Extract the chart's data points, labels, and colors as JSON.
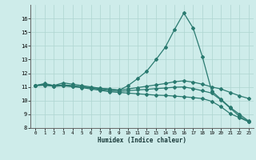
{
  "xlabel": "Humidex (Indice chaleur)",
  "ylabel": "",
  "background_color": "#ceecea",
  "grid_color": "#aed4d0",
  "line_color": "#2a7a70",
  "xlim": [
    -0.5,
    23.5
  ],
  "ylim": [
    8,
    17
  ],
  "xticks": [
    0,
    1,
    2,
    3,
    4,
    5,
    6,
    7,
    8,
    9,
    10,
    11,
    12,
    13,
    14,
    15,
    16,
    17,
    18,
    19,
    20,
    21,
    22,
    23
  ],
  "yticks": [
    8,
    9,
    10,
    11,
    12,
    13,
    14,
    15,
    16
  ],
  "series": [
    {
      "x": [
        0,
        1,
        2,
        3,
        4,
        5,
        6,
        7,
        8,
        9,
        10,
        11,
        12,
        13,
        14,
        15,
        16,
        17,
        18,
        19,
        20,
        21,
        22,
        23
      ],
      "y": [
        11.1,
        11.25,
        11.1,
        11.3,
        11.2,
        11.1,
        11.0,
        10.9,
        10.85,
        10.75,
        11.1,
        11.6,
        12.15,
        13.0,
        13.9,
        15.2,
        16.4,
        15.3,
        13.2,
        10.7,
        10.1,
        9.5,
        9.0,
        8.5
      ]
    },
    {
      "x": [
        0,
        1,
        2,
        3,
        4,
        5,
        6,
        7,
        8,
        9,
        10,
        11,
        12,
        13,
        14,
        15,
        16,
        17,
        18,
        19,
        20,
        21,
        22,
        23
      ],
      "y": [
        11.1,
        11.2,
        11.1,
        11.15,
        11.1,
        11.0,
        10.95,
        10.88,
        10.82,
        10.78,
        10.85,
        10.95,
        11.05,
        11.15,
        11.25,
        11.38,
        11.45,
        11.35,
        11.2,
        11.0,
        10.85,
        10.6,
        10.35,
        10.15
      ]
    },
    {
      "x": [
        0,
        1,
        2,
        3,
        4,
        5,
        6,
        7,
        8,
        9,
        10,
        11,
        12,
        13,
        14,
        15,
        16,
        17,
        18,
        19,
        20,
        21,
        22,
        23
      ],
      "y": [
        11.1,
        11.15,
        11.05,
        11.1,
        11.05,
        11.0,
        10.92,
        10.82,
        10.72,
        10.68,
        10.72,
        10.78,
        10.82,
        10.88,
        10.92,
        10.98,
        11.0,
        10.88,
        10.72,
        10.55,
        10.05,
        9.45,
        8.85,
        8.45
      ]
    },
    {
      "x": [
        0,
        1,
        2,
        3,
        4,
        5,
        6,
        7,
        8,
        9,
        10,
        11,
        12,
        13,
        14,
        15,
        16,
        17,
        18,
        19,
        20,
        21,
        22,
        23
      ],
      "y": [
        11.1,
        11.12,
        11.05,
        11.08,
        11.02,
        10.95,
        10.85,
        10.75,
        10.65,
        10.6,
        10.55,
        10.5,
        10.45,
        10.4,
        10.38,
        10.33,
        10.28,
        10.22,
        10.15,
        9.95,
        9.55,
        9.05,
        8.75,
        8.45
      ]
    }
  ]
}
